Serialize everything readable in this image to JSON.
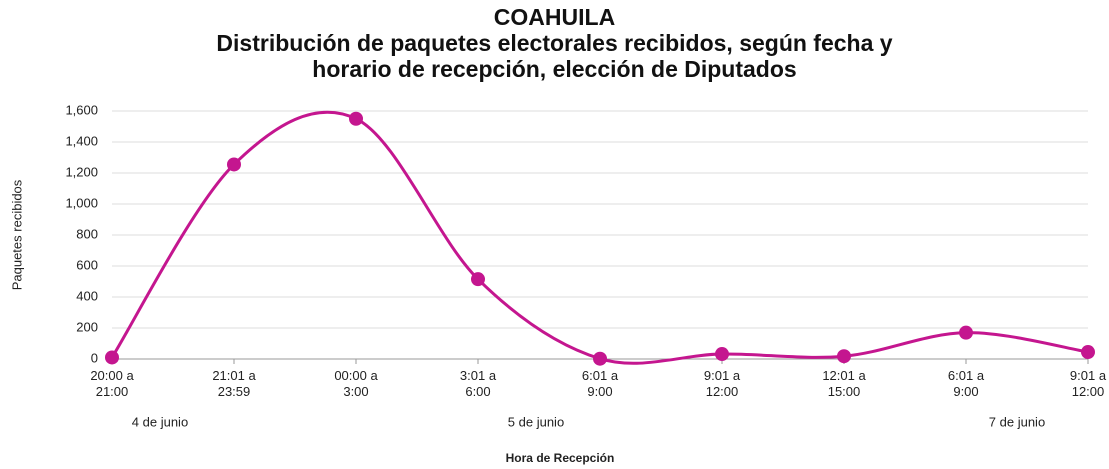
{
  "chart_data": {
    "type": "line",
    "title": "COAHUILA",
    "subtitle": "Distribución de paquetes electorales recibidos, según fecha y horario de recepción, elección de Diputados",
    "x_label": "Hora de Recepción",
    "y_label": "Paquetes recibidos",
    "categories": [
      "20:00 a\n21:00",
      "21:01 a\n23:59",
      "00:00 a\n3:00",
      "3:01 a\n6:00",
      "6:01 a\n9:00",
      "9:01 a\n12:00",
      "12:01 a\n15:00",
      "6:01 a\n9:00",
      "9:01 a\n12:00"
    ],
    "date_labels": [
      "4 de junio",
      "5 de junio",
      "7 de junio"
    ],
    "series": [
      {
        "name": "Paquetes recibidos",
        "color": "#c4168f",
        "values": [
          10,
          1255,
          1550,
          515,
          2,
          32,
          18,
          170,
          45
        ]
      }
    ],
    "ylim": [
      0,
      1600
    ],
    "yticks": [
      0,
      200,
      400,
      600,
      800,
      {
        "value": 1000,
        "label": "1,000"
      },
      {
        "value": 1200,
        "label": "1,200"
      },
      {
        "value": 1400,
        "label": "1,400"
      },
      {
        "value": 1600,
        "label": "1,600"
      }
    ],
    "smooth": true,
    "grid": true
  }
}
